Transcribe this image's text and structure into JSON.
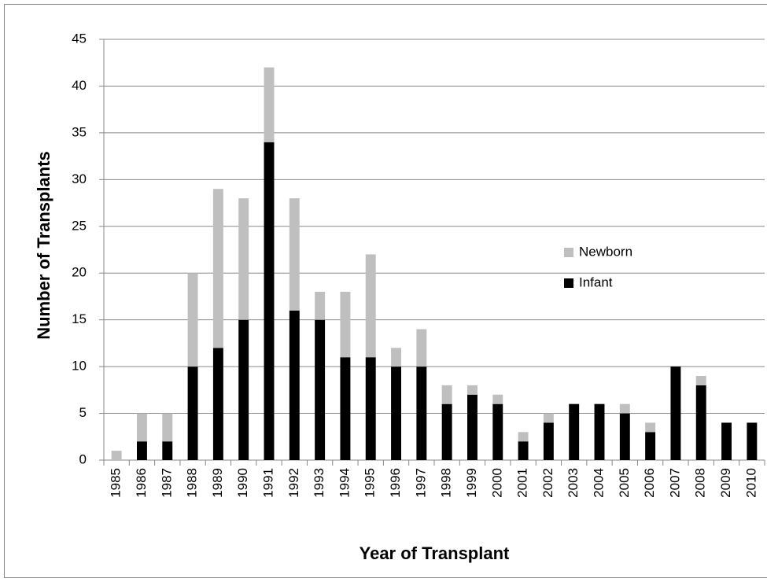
{
  "chart_data": {
    "type": "stacked_bar",
    "x_label": "Year of Transplant",
    "y_label": "Number of Transplants",
    "categories": [
      "1985",
      "1986",
      "1987",
      "1988",
      "1989",
      "1990",
      "1991",
      "1992",
      "1993",
      "1994",
      "1995",
      "1996",
      "1997",
      "1998",
      "1999",
      "2000",
      "2001",
      "2002",
      "2003",
      "2004",
      "2005",
      "2006",
      "2007",
      "2008",
      "2009",
      "2010"
    ],
    "series": [
      {
        "name": "Infant",
        "color": "#000000",
        "values": [
          0,
          2,
          2,
          10,
          12,
          15,
          34,
          16,
          15,
          11,
          11,
          10,
          10,
          6,
          7,
          6,
          2,
          4,
          6,
          6,
          5,
          3,
          10,
          8,
          4,
          4
        ]
      },
      {
        "name": "Newborn",
        "color": "#bfbfbf",
        "values": [
          1,
          3,
          3,
          10,
          17,
          13,
          8,
          12,
          3,
          7,
          11,
          2,
          4,
          2,
          1,
          1,
          1,
          1,
          0,
          0,
          1,
          1,
          0,
          1,
          0,
          0
        ]
      }
    ],
    "ylim": [
      0,
      45
    ],
    "yticks": [
      0,
      5,
      10,
      15,
      20,
      25,
      30,
      35,
      40,
      45
    ],
    "grid": true,
    "legend": "right"
  }
}
